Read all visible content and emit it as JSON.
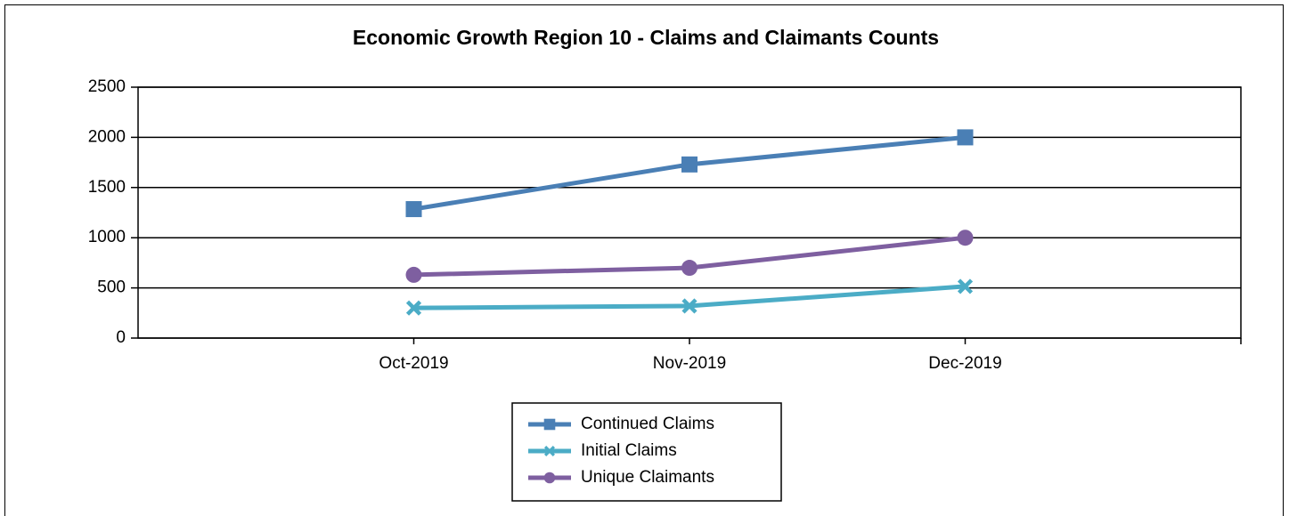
{
  "chart_data": {
    "type": "line",
    "title": "Economic Growth Region 10 - Claims and Claimants Counts",
    "categories": [
      "Oct-2019",
      "Nov-2019",
      "Dec-2019"
    ],
    "series": [
      {
        "name": "Continued Claims",
        "color": "#4a7fb5",
        "marker": "square",
        "values": [
          1285,
          1730,
          2000
        ]
      },
      {
        "name": "Initial Claims",
        "color": "#4bacc6",
        "marker": "x",
        "values": [
          300,
          320,
          515
        ]
      },
      {
        "name": "Unique Claimants",
        "color": "#7e5fa0",
        "marker": "circle",
        "values": [
          630,
          700,
          1000
        ]
      }
    ],
    "ylim": [
      0,
      2500
    ],
    "yticks": [
      0,
      500,
      1000,
      1500,
      2000,
      2500
    ],
    "grid": true,
    "legend": "bottom"
  }
}
